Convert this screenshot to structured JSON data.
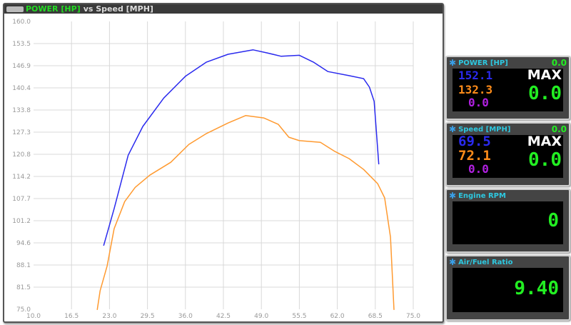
{
  "window": {
    "title_power": "POWER [HP]",
    "title_rest": "vs Speed [MPH]"
  },
  "chart_data": {
    "type": "line",
    "title": "POWER [HP] vs Speed [MPH]",
    "xlim": [
      10,
      75
    ],
    "ylim": [
      75,
      160
    ],
    "grid": true,
    "xticks": [
      "10.0",
      "16.5",
      "23.0",
      "29.5",
      "36.0",
      "42.5",
      "49.0",
      "55.5",
      "62.0",
      "68.5",
      "75.0"
    ],
    "yticks": [
      "160.0",
      "153.5",
      "146.9",
      "140.4",
      "133.8",
      "127.3",
      "120.8",
      "114.2",
      "107.7",
      "101.2",
      "94.6",
      "88.1",
      "81.5",
      "75.0"
    ],
    "series": [
      {
        "color": "#2a2aee",
        "points": [
          [
            22.0,
            93.8
          ],
          [
            23.8,
            104.7
          ],
          [
            26.2,
            120.5
          ],
          [
            28.7,
            129
          ],
          [
            32.3,
            137.4
          ],
          [
            36,
            143.8
          ],
          [
            39.6,
            148
          ],
          [
            43.3,
            150.3
          ],
          [
            47.6,
            151.6
          ],
          [
            50,
            150.7
          ],
          [
            52.4,
            149.7
          ],
          [
            55.5,
            150
          ],
          [
            57.9,
            148
          ],
          [
            60.4,
            145.2
          ],
          [
            64,
            144
          ],
          [
            66.5,
            143.1
          ],
          [
            67.5,
            140.6
          ],
          [
            68.3,
            136.4
          ],
          [
            69.1,
            117.8
          ]
        ]
      },
      {
        "color": "#ff9a30",
        "points": [
          [
            20.9,
            74.8
          ],
          [
            21.4,
            80.5
          ],
          [
            22.6,
            87.8
          ],
          [
            23.8,
            98.8
          ],
          [
            25.6,
            106.8
          ],
          [
            27.4,
            111
          ],
          [
            29.9,
            114.6
          ],
          [
            33.5,
            118.4
          ],
          [
            36.6,
            123.7
          ],
          [
            39.6,
            126.9
          ],
          [
            43.3,
            130
          ],
          [
            46.3,
            132.2
          ],
          [
            49.4,
            131.5
          ],
          [
            51.9,
            129.6
          ],
          [
            53.7,
            125.8
          ],
          [
            55.5,
            124.8
          ],
          [
            59.1,
            124.3
          ],
          [
            61.6,
            121.6
          ],
          [
            64,
            119.5
          ],
          [
            66.5,
            116.3
          ],
          [
            68.9,
            112.1
          ],
          [
            70.1,
            107.9
          ],
          [
            71.1,
            96.3
          ],
          [
            71.7,
            74.8
          ]
        ]
      }
    ]
  },
  "gauges": [
    {
      "title": "POWER [HP]",
      "max_top": "0.0",
      "blue": "152.1",
      "orange": "132.3",
      "purple": "0.0",
      "max_label": "MAX",
      "max_value": "0.0"
    },
    {
      "title": "Speed [MPH]",
      "max_top": "0.0",
      "blue": "69.5",
      "orange": "72.1",
      "purple": "0.0",
      "max_label": "MAX",
      "max_value": "0.0"
    },
    {
      "title": "Engine RPM",
      "value": "0"
    },
    {
      "title": "Air/Fuel Ratio",
      "value": "9.40"
    }
  ],
  "colors": {
    "blue": "#2a2aee",
    "orange": "#ff8c1a",
    "purple": "#b020e0",
    "green": "#22ee22"
  }
}
